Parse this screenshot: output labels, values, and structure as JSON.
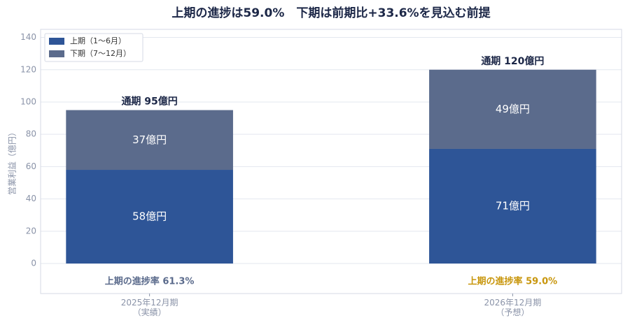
{
  "chart_data": {
    "type": "stacked_bar",
    "title": "上期の進捗は59.0%　下期は前期比+33.6%を見込む前提",
    "y_label": "営業利益（億円）",
    "categories": [
      [
        "2025年12月期",
        "（実績）"
      ],
      [
        "2026年12月期",
        "（予想）"
      ]
    ],
    "series": [
      {
        "name": "上期（1〜6月）",
        "color": "#2e5597",
        "values": [
          58,
          71
        ],
        "value_labels": [
          "58億円",
          "71億円"
        ]
      },
      {
        "name": "下期（7〜12月）",
        "color": "#5b6b8c",
        "values": [
          37,
          49
        ],
        "value_labels": [
          "37億円",
          "49億円"
        ]
      }
    ],
    "total_labels": [
      "通期 95億円",
      "通期 120億円"
    ],
    "annotations": [
      {
        "text": "上期の進捗率 61.3%",
        "color": "#5b6b8c"
      },
      {
        "text": "上期の進捗率 59.0%",
        "color": "#c8960c"
      }
    ],
    "ylim": [
      -18.6,
      145
    ],
    "yticks": [
      0,
      20,
      40,
      60,
      80,
      100,
      120,
      140
    ],
    "grid": true,
    "legend": "upper left"
  }
}
